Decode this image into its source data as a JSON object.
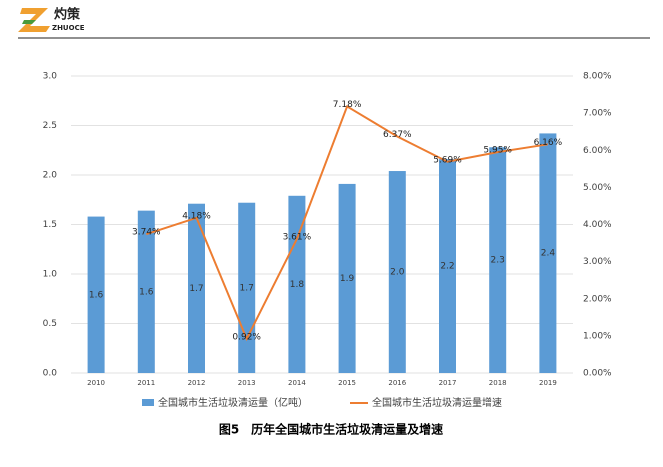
{
  "header": {
    "logo_text": "灼策",
    "logo_sub": "ZHUOCE"
  },
  "chart_data": {
    "type": "bar-line",
    "title": "图5　历年全国城市生活垃圾清运量及增速",
    "categories": [
      "2010",
      "2011",
      "2012",
      "2013",
      "2014",
      "2015",
      "2016",
      "2017",
      "2018",
      "2019"
    ],
    "series": [
      {
        "name": "全国城市生活垃圾清运量（亿吨）",
        "type": "bar",
        "color": "#5b9bd5",
        "values": [
          1.58,
          1.64,
          1.71,
          1.72,
          1.79,
          1.91,
          2.04,
          2.16,
          2.28,
          2.42
        ],
        "value_labels": [
          "1.6",
          "1.6",
          "1.7",
          "1.7",
          "1.8",
          "1.9",
          "2.0",
          "2.2",
          "2.3",
          "2.4"
        ]
      },
      {
        "name": "全国城市生活垃圾清运量增速",
        "type": "line",
        "axis": "y2",
        "color": "#ed7d31",
        "values": [
          null,
          3.74,
          4.18,
          0.92,
          3.61,
          7.18,
          6.37,
          5.69,
          5.95,
          6.16
        ],
        "value_labels": [
          null,
          "3.74%",
          "4.18%",
          "0.92%",
          "3.61%",
          "7.18%",
          "6.37%",
          "5.69%",
          "5.95%",
          "6.16%"
        ]
      }
    ],
    "ylim": [
      0,
      3
    ],
    "yticks": [
      {
        "value": 0,
        "label": "0.0"
      },
      {
        "value": 0.5,
        "label": "0.5"
      },
      {
        "value": 1,
        "label": "1.0"
      },
      {
        "value": 1.5,
        "label": "1.5"
      },
      {
        "value": 2,
        "label": "2.0"
      },
      {
        "value": 2.5,
        "label": "2.5"
      },
      {
        "value": 3,
        "label": "3.0"
      }
    ],
    "y2lim": [
      0,
      8
    ],
    "y2ticks": [
      {
        "value": 0,
        "label": "0.00%"
      },
      {
        "value": 1,
        "label": "1.00%"
      },
      {
        "value": 2,
        "label": "2.00%"
      },
      {
        "value": 3,
        "label": "3.00%"
      },
      {
        "value": 4,
        "label": "4.00%"
      },
      {
        "value": 5,
        "label": "5.00%"
      },
      {
        "value": 6,
        "label": "6.00%"
      },
      {
        "value": 7,
        "label": "7.00%"
      },
      {
        "value": 8,
        "label": "8.00%"
      }
    ],
    "grid": true,
    "legend": "bottom"
  }
}
